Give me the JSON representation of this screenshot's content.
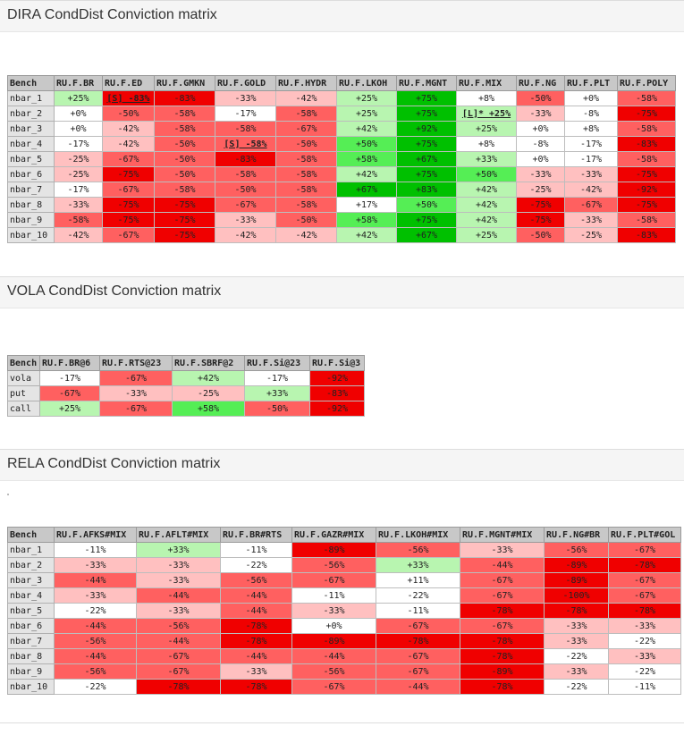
{
  "sections": [
    {
      "title": "DIRA CondDist Conviction matrix",
      "header": [
        "Bench",
        "RU.F.BR",
        "RU.F.ED",
        "RU.F.GMKN",
        "RU.F.GOLD",
        "RU.F.HYDR",
        "RU.F.LKOH",
        "RU.F.MGNT",
        "RU.F.MIX",
        "RU.F.NG",
        "RU.F.PLT",
        "RU.F.POLY"
      ],
      "rows": [
        [
          "nbar_1",
          "+25%",
          "[S] -83%",
          "-83%",
          "-33%",
          "-42%",
          "+25%",
          "+75%",
          "+8%",
          "-50%",
          "+0%",
          "-58%"
        ],
        [
          "nbar_2",
          "+0%",
          "-50%",
          "-58%",
          "-17%",
          "-58%",
          "+25%",
          "+75%",
          "[L]* +25%",
          "-33%",
          "-8%",
          "-75%"
        ],
        [
          "nbar_3",
          "+0%",
          "-42%",
          "-58%",
          "-58%",
          "-67%",
          "+42%",
          "+92%",
          "+25%",
          "+0%",
          "+8%",
          "-58%"
        ],
        [
          "nbar_4",
          "-17%",
          "-42%",
          "-50%",
          "[S] -58%",
          "-50%",
          "+50%",
          "+75%",
          "+8%",
          "-8%",
          "-17%",
          "-83%"
        ],
        [
          "nbar_5",
          "-25%",
          "-67%",
          "-50%",
          "-83%",
          "-58%",
          "+58%",
          "+67%",
          "+33%",
          "+0%",
          "-17%",
          "-58%"
        ],
        [
          "nbar_6",
          "-25%",
          "-75%",
          "-50%",
          "-58%",
          "-58%",
          "+42%",
          "+75%",
          "+50%",
          "-33%",
          "-33%",
          "-75%"
        ],
        [
          "nbar_7",
          "-17%",
          "-67%",
          "-58%",
          "-50%",
          "-58%",
          "+67%",
          "+83%",
          "+42%",
          "-25%",
          "-42%",
          "-92%"
        ],
        [
          "nbar_8",
          "-33%",
          "-75%",
          "-75%",
          "-67%",
          "-58%",
          "+17%",
          "+50%",
          "+42%",
          "-75%",
          "-67%",
          "-75%"
        ],
        [
          "nbar_9",
          "-58%",
          "-75%",
          "-75%",
          "-33%",
          "-50%",
          "+58%",
          "+75%",
          "+42%",
          "-75%",
          "-33%",
          "-58%"
        ],
        [
          "nbar_10",
          "-42%",
          "-67%",
          "-75%",
          "-42%",
          "-42%",
          "+42%",
          "+67%",
          "+25%",
          "-50%",
          "-25%",
          "-83%"
        ]
      ]
    },
    {
      "title": "VOLA CondDist Conviction matrix",
      "header": [
        "Bench",
        "RU.F.BR@6",
        "RU.F.RTS@23",
        "RU.F.SBRF@2",
        "RU.F.Si@23",
        "RU.F.Si@3"
      ],
      "rows": [
        [
          "vola",
          "-17%",
          "-67%",
          "+42%",
          "-17%",
          "-92%"
        ],
        [
          "put",
          "-67%",
          "-33%",
          "-25%",
          "+33%",
          "-83%"
        ],
        [
          "call",
          "+25%",
          "-67%",
          "+58%",
          "-50%",
          "-92%"
        ]
      ]
    },
    {
      "title": "RELA CondDist Conviction matrix",
      "header": [
        "Bench",
        "RU.F.AFKS#MIX",
        "RU.F.AFLT#MIX",
        "RU.F.BR#RTS",
        "RU.F.GAZR#MIX",
        "RU.F.LKOH#MIX",
        "RU.F.MGNT#MIX",
        "RU.F.NG#BR",
        "RU.F.PLT#GOL"
      ],
      "rows": [
        [
          "nbar_1",
          "-11%",
          "+33%",
          "-11%",
          "-89%",
          "-56%",
          "-33%",
          "-56%",
          "-67%"
        ],
        [
          "nbar_2",
          "-33%",
          "-33%",
          "-22%",
          "-56%",
          "+33%",
          "-44%",
          "-89%",
          "-78%"
        ],
        [
          "nbar_3",
          "-44%",
          "-33%",
          "-56%",
          "-67%",
          "+11%",
          "-67%",
          "-89%",
          "-67%"
        ],
        [
          "nbar_4",
          "-33%",
          "-44%",
          "-44%",
          "-11%",
          "-22%",
          "-67%",
          "-100%",
          "-67%"
        ],
        [
          "nbar_5",
          "-22%",
          "-33%",
          "-44%",
          "-33%",
          "-11%",
          "-78%",
          "-78%",
          "-78%"
        ],
        [
          "nbar_6",
          "-44%",
          "-56%",
          "-78%",
          "+0%",
          "-67%",
          "-67%",
          "-33%",
          "-33%"
        ],
        [
          "nbar_7",
          "-56%",
          "-44%",
          "-78%",
          "-89%",
          "-78%",
          "-78%",
          "-33%",
          "-22%"
        ],
        [
          "nbar_8",
          "-44%",
          "-67%",
          "-44%",
          "-44%",
          "-67%",
          "-78%",
          "-22%",
          "-33%"
        ],
        [
          "nbar_9",
          "-56%",
          "-67%",
          "-33%",
          "-56%",
          "-67%",
          "-89%",
          "-33%",
          "-22%"
        ],
        [
          "nbar_10",
          "-22%",
          "-78%",
          "-78%",
          "-67%",
          "-44%",
          "-78%",
          "-22%",
          "-11%"
        ]
      ]
    }
  ],
  "colors": {
    "neutral": "#ffffff",
    "weak_negative": "#ffc0c0",
    "mid_negative": "#ff6060",
    "strong_negative": "#f00000",
    "weak_positive": "#b8f5b0",
    "mid_positive": "#55ee55",
    "strong_positive": "#00c000",
    "header_bg": "#c8c8c8",
    "rowhdr_bg": "#e4e4e4"
  }
}
